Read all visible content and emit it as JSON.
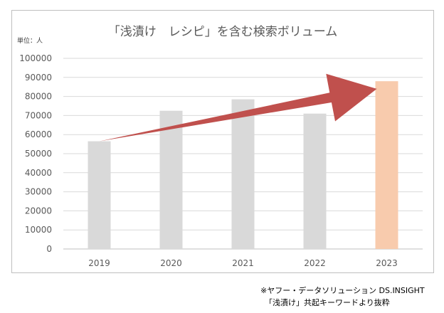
{
  "chart_data": {
    "type": "bar",
    "title": "「浅漬け　レシピ」を含む検索ボリューム",
    "unit_label": "単位：人",
    "categories": [
      "2019",
      "2020",
      "2021",
      "2022",
      "2023"
    ],
    "values": [
      56500,
      72500,
      78500,
      71000,
      88000
    ],
    "highlight_index": 4,
    "ylim": [
      0,
      100000
    ],
    "yticks": [
      "0",
      "10000",
      "20000",
      "30000",
      "40000",
      "50000",
      "60000",
      "70000",
      "80000",
      "90000",
      "100000"
    ],
    "ytick_values": [
      0,
      10000,
      20000,
      30000,
      40000,
      50000,
      60000,
      70000,
      80000,
      90000,
      100000
    ],
    "grid": true,
    "legend": "none",
    "trend_arrow": {
      "from_category": "2019",
      "from_value": 56500,
      "to_category": "2023",
      "to_value": 84000
    },
    "colors": {
      "bar": "#d9d9d9",
      "highlight": "#f8cbad",
      "arrow": "#c0504d",
      "grid": "#d9d9d9",
      "text": "#595959"
    }
  },
  "notes": {
    "source": "※ヤフー・データソリューション DS.INSIGHT",
    "method": "「浅漬け」共起キーワードより抜粋"
  }
}
